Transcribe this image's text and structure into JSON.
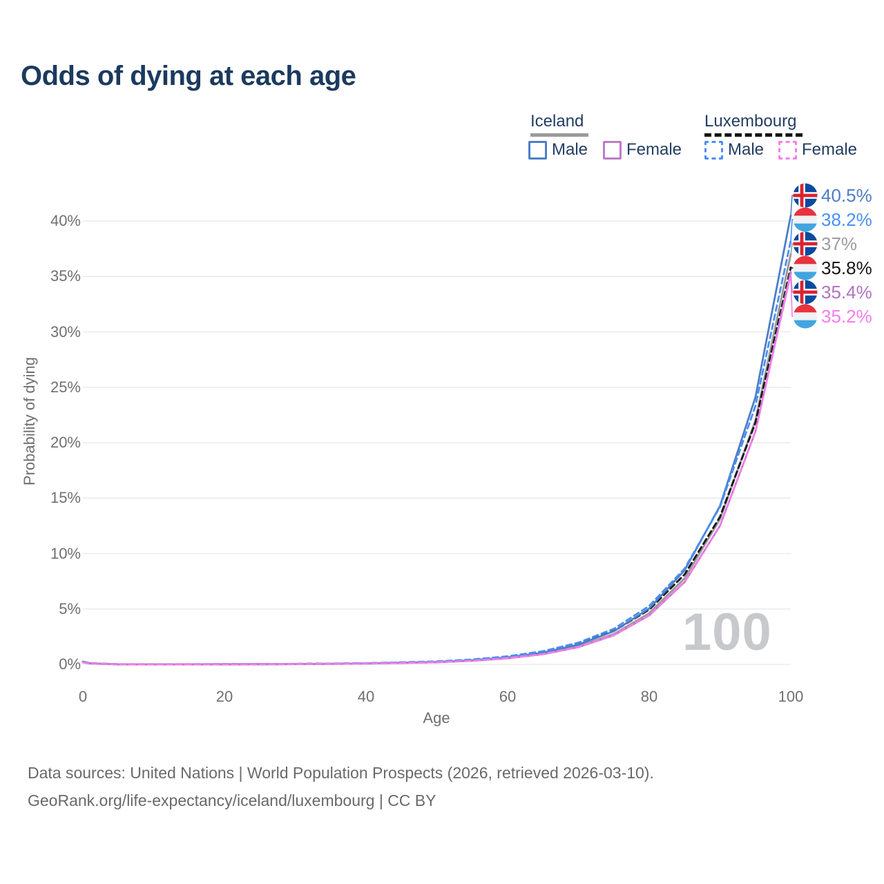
{
  "title": "Odds of dying at each age",
  "legend": {
    "groups": [
      {
        "name": "Iceland",
        "line_style": "solid",
        "underline_color": "#9a9a9a",
        "items": [
          {
            "label": "Male",
            "color": "#4d7ec8"
          },
          {
            "label": "Female",
            "color": "#bd7cc8"
          }
        ]
      },
      {
        "name": "Luxembourg",
        "line_style": "dashed",
        "underline_color": "#151515",
        "items": [
          {
            "label": "Male",
            "color": "#4a8ff5"
          },
          {
            "label": "Female",
            "color": "#f97cec"
          }
        ]
      }
    ]
  },
  "chart_data": {
    "type": "line",
    "title": "Odds of dying at each age",
    "xlabel": "Age",
    "ylabel": "Probability of dying",
    "xlim": [
      0,
      100
    ],
    "ylim": [
      0,
      42
    ],
    "x_ticks": [
      0,
      20,
      40,
      60,
      80,
      100
    ],
    "y_ticks": [
      "0%",
      "5%",
      "10%",
      "15%",
      "20%",
      "25%",
      "30%",
      "35%",
      "40%"
    ],
    "y_tick_step_percent": 5,
    "grid": "horizontal",
    "x": [
      0,
      1,
      5,
      10,
      20,
      30,
      40,
      50,
      55,
      60,
      65,
      70,
      75,
      80,
      85,
      90,
      95,
      100
    ],
    "series": [
      {
        "id": "iceland-both",
        "name": "Iceland (both sexes)",
        "country": "Iceland",
        "sex": "both",
        "color": "#9c9c9c",
        "dash": "solid",
        "width": 3,
        "values": [
          0.22,
          0.09,
          0.005,
          0.003,
          0.009,
          0.026,
          0.071,
          0.2,
          0.34,
          0.57,
          0.96,
          1.62,
          2.73,
          4.61,
          7.76,
          13.1,
          22.0,
          37.0
        ],
        "end_label": "37%"
      },
      {
        "id": "luxembourg-both",
        "name": "Luxembourg (both sexes)",
        "country": "Luxembourg",
        "sex": "both",
        "color": "#1b1b1e",
        "dash": "dashed",
        "width": 3,
        "values": [
          0.21,
          0.09,
          0.005,
          0.005,
          0.013,
          0.035,
          0.094,
          0.25,
          0.41,
          0.68,
          1.12,
          1.84,
          3.01,
          4.94,
          8.11,
          13.3,
          21.8,
          35.8
        ],
        "end_label": "35.8%"
      },
      {
        "id": "iceland-male",
        "name": "Iceland Male",
        "country": "Iceland",
        "sex": "male",
        "color": "#4d7ec8",
        "dash": "solid",
        "width": 2.8,
        "values": [
          0.25,
          0.1,
          0.005,
          0.003,
          0.01,
          0.028,
          0.078,
          0.22,
          0.37,
          0.62,
          1.05,
          1.78,
          2.99,
          5.04,
          8.49,
          14.3,
          24.1,
          40.5
        ],
        "end_label": "40.5%"
      },
      {
        "id": "iceland-female",
        "name": "Iceland Female",
        "country": "Iceland",
        "sex": "female",
        "color": "#bd7cc8",
        "dash": "solid",
        "width": 2.8,
        "values": [
          0.19,
          0.08,
          0.004,
          0.003,
          0.009,
          0.024,
          0.068,
          0.19,
          0.32,
          0.55,
          0.92,
          1.55,
          2.62,
          4.41,
          7.42,
          12.5,
          21.0,
          35.4
        ],
        "end_label": "35.4%"
      },
      {
        "id": "luxembourg-male",
        "name": "Luxembourg Male",
        "country": "Luxembourg",
        "sex": "male",
        "color": "#4a8ff5",
        "dash": "dashed",
        "width": 2.8,
        "values": [
          0.24,
          0.1,
          0.005,
          0.005,
          0.014,
          0.037,
          0.1,
          0.27,
          0.44,
          0.73,
          1.19,
          1.96,
          3.21,
          5.27,
          8.65,
          14.2,
          23.3,
          38.2
        ],
        "end_label": "38.2%"
      },
      {
        "id": "luxembourg-female",
        "name": "Luxembourg Female",
        "country": "Luxembourg",
        "sex": "female",
        "color": "#f97cec",
        "dash": "dashed",
        "width": 2.8,
        "values": [
          0.18,
          0.07,
          0.004,
          0.003,
          0.009,
          0.025,
          0.069,
          0.2,
          0.33,
          0.56,
          0.93,
          1.57,
          2.64,
          4.44,
          7.46,
          12.5,
          21.0,
          35.2
        ],
        "end_label": "35.2%"
      }
    ]
  },
  "end_labels": [
    {
      "flag": "iceland",
      "text": "40.5%",
      "value": 40.5,
      "color": "#4d7ec8",
      "series_id": "iceland-male"
    },
    {
      "flag": "luxembourg",
      "text": "38.2%",
      "value": 38.2,
      "color": "#4a8ff5",
      "series_id": "luxembourg-male"
    },
    {
      "flag": "iceland",
      "text": "37%",
      "value": 37.0,
      "color": "#9d9da1",
      "series_id": "iceland-both"
    },
    {
      "flag": "luxembourg",
      "text": "35.8%",
      "value": 35.8,
      "color": "#17171a",
      "series_id": "luxembourg-both"
    },
    {
      "flag": "iceland",
      "text": "35.4%",
      "value": 35.4,
      "color": "#b273c0",
      "series_id": "iceland-female"
    },
    {
      "flag": "luxembourg",
      "text": "35.2%",
      "value": 35.2,
      "color": "#f97cec",
      "series_id": "luxembourg-female"
    }
  ],
  "flag_colors": {
    "iceland_blue": "#0a4b9f",
    "iceland_red": "#d9232e",
    "luxembourg_red": "#e8323e",
    "luxembourg_white": "#f0f2f4",
    "luxembourg_blue": "#42a5e0"
  },
  "watermark": "100",
  "footer": {
    "line1": "Data sources: United Nations | World Population Prospects (2026, retrieved 2026-03-10).",
    "line2": "GeoRank.org/life-expectancy/iceland/luxembourg | CC BY"
  }
}
